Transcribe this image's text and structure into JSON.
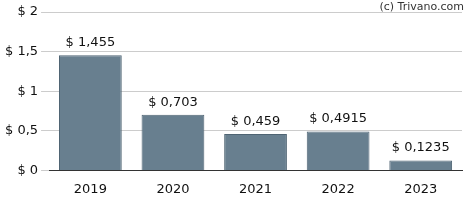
{
  "chart_data": {
    "type": "bar",
    "annotations": [
      "(c) Trivano.com"
    ],
    "categories": [
      "2019",
      "2020",
      "2021",
      "2022",
      "2023"
    ],
    "values": [
      1.455,
      0.703,
      0.459,
      0.4915,
      0.1235
    ],
    "value_labels": [
      "$ 1,455",
      "$ 0,703",
      "$ 0,459",
      "$ 0,4915",
      "$ 0,1235"
    ],
    "data_labels": true,
    "color": "#687f8f",
    "ylim": [
      0,
      2
    ],
    "yticks": [
      {
        "value": 0,
        "label": "$ 0"
      },
      {
        "value": 0.5,
        "label": "$ 0,5"
      },
      {
        "value": 1,
        "label": "$ 1"
      },
      {
        "value": 1.5,
        "label": "$ 1,5"
      },
      {
        "value": 2,
        "label": "$ 2"
      }
    ],
    "grid": true
  }
}
